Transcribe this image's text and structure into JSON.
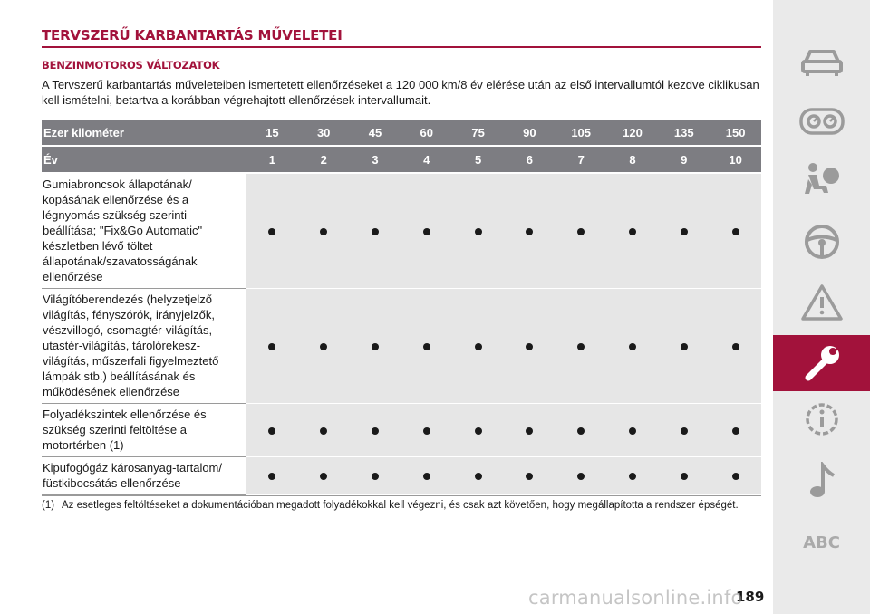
{
  "page": {
    "title": "TERVSZERŰ KARBANTARTÁS MŰVELETEI",
    "subtitle": "BENZINMOTOROS VÁLTOZATOK",
    "intro": "A Tervszerű karbantartás műveleteiben ismertetett ellenőrzéseket a 120 000 km/8 év elérése után az első intervallumtól kezdve ciklikusan kell ismételni, betartva a korábban végrehajtott ellenőrzések intervallumait."
  },
  "table": {
    "km_label": "Ezer kilométer",
    "km_values": [
      "15",
      "30",
      "45",
      "60",
      "75",
      "90",
      "105",
      "120",
      "135",
      "150"
    ],
    "year_label": "Év",
    "year_values": [
      "1",
      "2",
      "3",
      "4",
      "5",
      "6",
      "7",
      "8",
      "9",
      "10"
    ],
    "rows": [
      {
        "label": "Gumiabroncsok állapotának/\nkopásának ellenőrzése és a\nlégnyomás szükség szerinti\nbeállítása; \"Fix&Go Automatic\"\nkészletben lévő töltet\nállapotának/szavatosságának\nellenőrzése",
        "marks": [
          true,
          true,
          true,
          true,
          true,
          true,
          true,
          true,
          true,
          true
        ]
      },
      {
        "label": "Világítóberendezés (helyzetjelző\nvilágítás, fényszórók, irányjelzők,\nvészvillogó, csomagtér-világítás,\nutastér-világítás, tárolórekesz-\nvilágítás, műszerfali figyelmeztető\nlámpák stb.) beállításának és\nműködésének ellenőrzése",
        "marks": [
          true,
          true,
          true,
          true,
          true,
          true,
          true,
          true,
          true,
          true
        ]
      },
      {
        "label": "Folyadékszintek ellenőrzése és\nszükség szerinti feltöltése a\nmotortérben (1)",
        "marks": [
          true,
          true,
          true,
          true,
          true,
          true,
          true,
          true,
          true,
          true
        ]
      },
      {
        "label": "Kipufogógáz károsanyag-tartalom/\nfüstkibocsátás ellenőrzése",
        "marks": [
          true,
          true,
          true,
          true,
          true,
          true,
          true,
          true,
          true,
          true
        ]
      }
    ]
  },
  "footnote": {
    "mark": "(1)",
    "text": "Az esetleges feltöltéseket a dokumentációban megadott folyadékokkal kell végezni, és csak azt követően, hogy megállapította a rendszer épségét."
  },
  "sidebar": {
    "items": [
      {
        "icon": "car-icon",
        "active": false
      },
      {
        "icon": "dashboard-gauges-icon",
        "active": false
      },
      {
        "icon": "airbag-passenger-icon",
        "active": false
      },
      {
        "icon": "steering-wheel-icon",
        "active": false
      },
      {
        "icon": "warning-triangle-icon",
        "active": false
      },
      {
        "icon": "wrench-icon",
        "active": true
      },
      {
        "icon": "info-gear-icon",
        "active": false
      },
      {
        "icon": "music-note-icon",
        "active": false
      }
    ],
    "abc_label": "ABC",
    "active_color": "#a2123b",
    "icon_color": "#9b9b9b"
  },
  "page_number": "189",
  "watermark": "carmanualsonline.info"
}
